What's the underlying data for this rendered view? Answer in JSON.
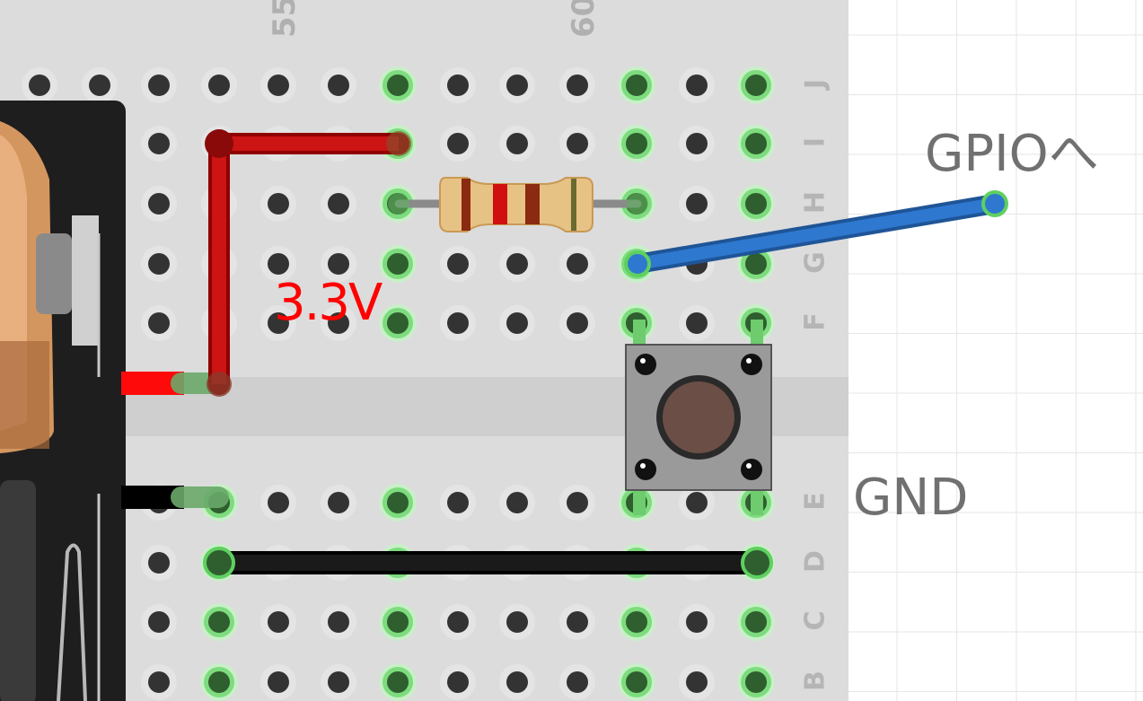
{
  "breadboard": {
    "column_numbers": [
      "55",
      "60"
    ],
    "row_letters": [
      "J",
      "I",
      "H",
      "G",
      "F",
      "E",
      "D",
      "C",
      "B"
    ]
  },
  "labels": {
    "voltage": "3.3V",
    "gpio": "GPIOへ",
    "gnd": "GND"
  },
  "colors": {
    "wire_power": "#c81010",
    "wire_ground": "#111111",
    "wire_gpio": "#2a72c6",
    "voltage_text": "#ff0000",
    "board": "#dcdcdc",
    "connected_hole": "#7ddc7d"
  },
  "components": {
    "resistor": {
      "bands": [
        "brown",
        "red",
        "red",
        "gold"
      ]
    },
    "pushbutton": {
      "cap_color": "#6b4f46"
    }
  }
}
